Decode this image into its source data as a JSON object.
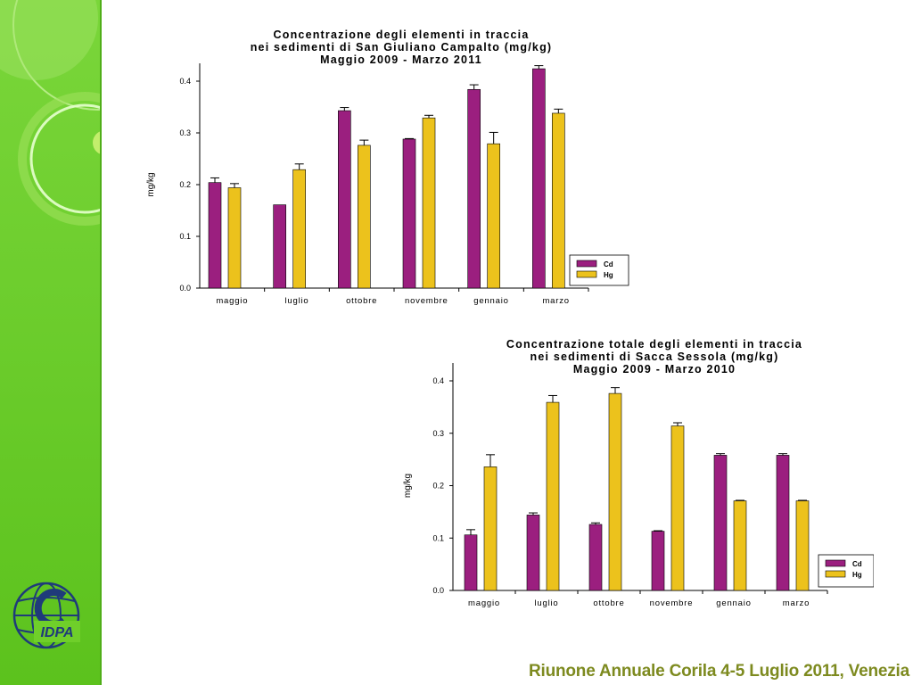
{
  "theme": {
    "bar_colors": {
      "Cd": "#9b1f7f",
      "Hg": "#ecc21c"
    },
    "sidebar_green": "#6fcf2a",
    "footer_color": "#7d8a1f"
  },
  "logo": {
    "text": "IDPA"
  },
  "footer": {
    "text": "Riunone Annuale Corila 4-5 Luglio 2011, Venezia"
  },
  "chart_data": [
    {
      "type": "bar",
      "title": [
        "Concentrazione degli elementi in traccia",
        "nei sedimenti di San Giuliano Campalto (mg/kg)",
        "Maggio 2009 - Marzo 2011"
      ],
      "ylabel": "mg/kg",
      "ylim": [
        0,
        0.4
      ],
      "yticks": [
        "0.0",
        "0.1",
        "0.2",
        "0.3",
        "0.4"
      ],
      "categories": [
        "maggio",
        "luglio",
        "ottobre",
        "novembre",
        "gennaio",
        "marzo"
      ],
      "legend_position": "bottom-right",
      "series": [
        {
          "name": "Cd",
          "values": [
            0.204,
            0.161,
            0.343,
            0.288,
            0.384,
            0.424
          ],
          "errors": [
            0.009,
            0,
            0.006,
            0.001,
            0.009,
            0.006
          ]
        },
        {
          "name": "Hg",
          "values": [
            0.194,
            0.229,
            0.276,
            0.329,
            0.279,
            0.338
          ],
          "errors": [
            0.008,
            0.011,
            0.01,
            0.005,
            0.022,
            0.008
          ]
        }
      ]
    },
    {
      "type": "bar",
      "title": [
        "Concentrazione totale degli elementi in traccia",
        "nei sedimenti di Sacca Sessola (mg/kg)",
        "Maggio 2009 - Marzo 2010"
      ],
      "ylabel": "mg/kg",
      "ylim": [
        0,
        0.4
      ],
      "yticks": [
        "0.0",
        "0.1",
        "0.2",
        "0.3",
        "0.4"
      ],
      "categories": [
        "maggio",
        "luglio",
        "ottobre",
        "novembre",
        "gennaio",
        "marzo"
      ],
      "legend_position": "bottom-right",
      "series": [
        {
          "name": "Cd",
          "values": [
            0.106,
            0.144,
            0.126,
            0.113,
            0.258,
            0.258
          ],
          "errors": [
            0.01,
            0.004,
            0.003,
            0.001,
            0.003,
            0.003
          ]
        },
        {
          "name": "Hg",
          "values": [
            0.236,
            0.359,
            0.376,
            0.314,
            0.171,
            0.171
          ],
          "errors": [
            0.023,
            0.013,
            0.011,
            0.006,
            0.001,
            0.001
          ]
        }
      ]
    }
  ]
}
